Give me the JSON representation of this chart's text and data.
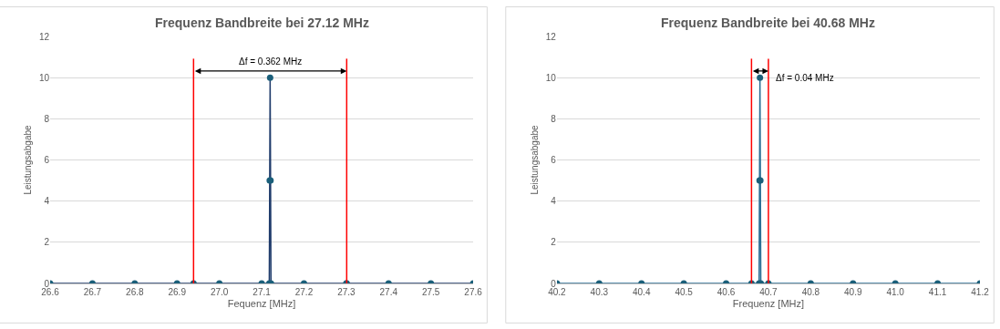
{
  "chart_data": [
    {
      "type": "line",
      "title": "Frequenz Bandbreite bei 27.12 MHz",
      "xlabel": "Fequenz [MHz]",
      "ylabel": "Leistungsabgabe",
      "series": [
        {
          "color": "#1f3b6b",
          "x": [
            26.6,
            26.7,
            26.8,
            26.9,
            26.939,
            27.0,
            27.1,
            27.118,
            27.119,
            27.12,
            27.121,
            27.122,
            27.2,
            27.3,
            27.301,
            27.4,
            27.5,
            27.6
          ],
          "values": [
            0,
            0,
            0,
            0,
            0,
            0,
            0,
            0,
            5,
            10,
            5,
            0,
            0,
            0,
            0,
            0,
            0,
            0
          ]
        }
      ],
      "xlim": [
        26.6,
        27.6
      ],
      "xticks": [
        {
          "value": 26.6,
          "label": "26.6"
        },
        {
          "value": 26.7,
          "label": "26.7"
        },
        {
          "value": 26.8,
          "label": "26.8"
        },
        {
          "value": 26.9,
          "label": "26.9"
        },
        {
          "value": 27.0,
          "label": "27.0"
        },
        {
          "value": 27.1,
          "label": "27.1"
        },
        {
          "value": 27.2,
          "label": "27.2"
        },
        {
          "value": 27.3,
          "label": "27.3"
        },
        {
          "value": 27.4,
          "label": "27.4"
        },
        {
          "value": 27.5,
          "label": "27.5"
        },
        {
          "value": 27.6,
          "label": "27.6"
        }
      ],
      "ylim": [
        0,
        12
      ],
      "yticks": [
        0,
        2,
        4,
        6,
        8,
        10,
        12
      ],
      "ref_lines": [
        {
          "axis": "x",
          "value": 26.939,
          "color": "#ff0000"
        },
        {
          "axis": "x",
          "value": 27.301,
          "color": "#ff0000"
        }
      ],
      "annotations": [
        "Δf = 0.362 MHz"
      ],
      "grid": "y",
      "legend": false,
      "marker": "circle",
      "line_style": "solid"
    },
    {
      "type": "line",
      "title": "Frequenz Bandbreite bei 40.68 MHz",
      "xlabel": "Frequenz [MHz]",
      "ylabel": "Leistungsabgabe",
      "series": [
        {
          "color": "#2b6f95",
          "x": [
            40.2,
            40.3,
            40.4,
            40.5,
            40.6,
            40.66,
            40.678,
            40.679,
            40.68,
            40.681,
            40.682,
            40.7,
            40.8,
            40.9,
            41.0,
            41.1,
            41.2
          ],
          "values": [
            0,
            0,
            0,
            0,
            0,
            0,
            0,
            5,
            10,
            5,
            0,
            0,
            0,
            0,
            0,
            0,
            0
          ]
        }
      ],
      "xlim": [
        40.2,
        41.2
      ],
      "xticks": [
        {
          "value": 40.2,
          "label": "40.2"
        },
        {
          "value": 40.3,
          "label": "40.3"
        },
        {
          "value": 40.4,
          "label": "40.4"
        },
        {
          "value": 40.5,
          "label": "40.5"
        },
        {
          "value": 40.6,
          "label": "40.6"
        },
        {
          "value": 40.7,
          "label": "40.7"
        },
        {
          "value": 40.8,
          "label": "40.8"
        },
        {
          "value": 40.9,
          "label": "40.9"
        },
        {
          "value": 41.0,
          "label": "41.0"
        },
        {
          "value": 41.1,
          "label": "41.1"
        },
        {
          "value": 41.2,
          "label": "41.2"
        }
      ],
      "ylim": [
        0,
        12
      ],
      "yticks": [
        0,
        2,
        4,
        6,
        8,
        10,
        12
      ],
      "ref_lines": [
        {
          "axis": "x",
          "value": 40.66,
          "color": "#ff0000"
        },
        {
          "axis": "x",
          "value": 40.7,
          "color": "#ff0000"
        }
      ],
      "annotations": [
        "Δf = 0.04 MHz"
      ],
      "grid": "y",
      "legend": false,
      "marker": "circle",
      "line_style": "solid"
    }
  ]
}
